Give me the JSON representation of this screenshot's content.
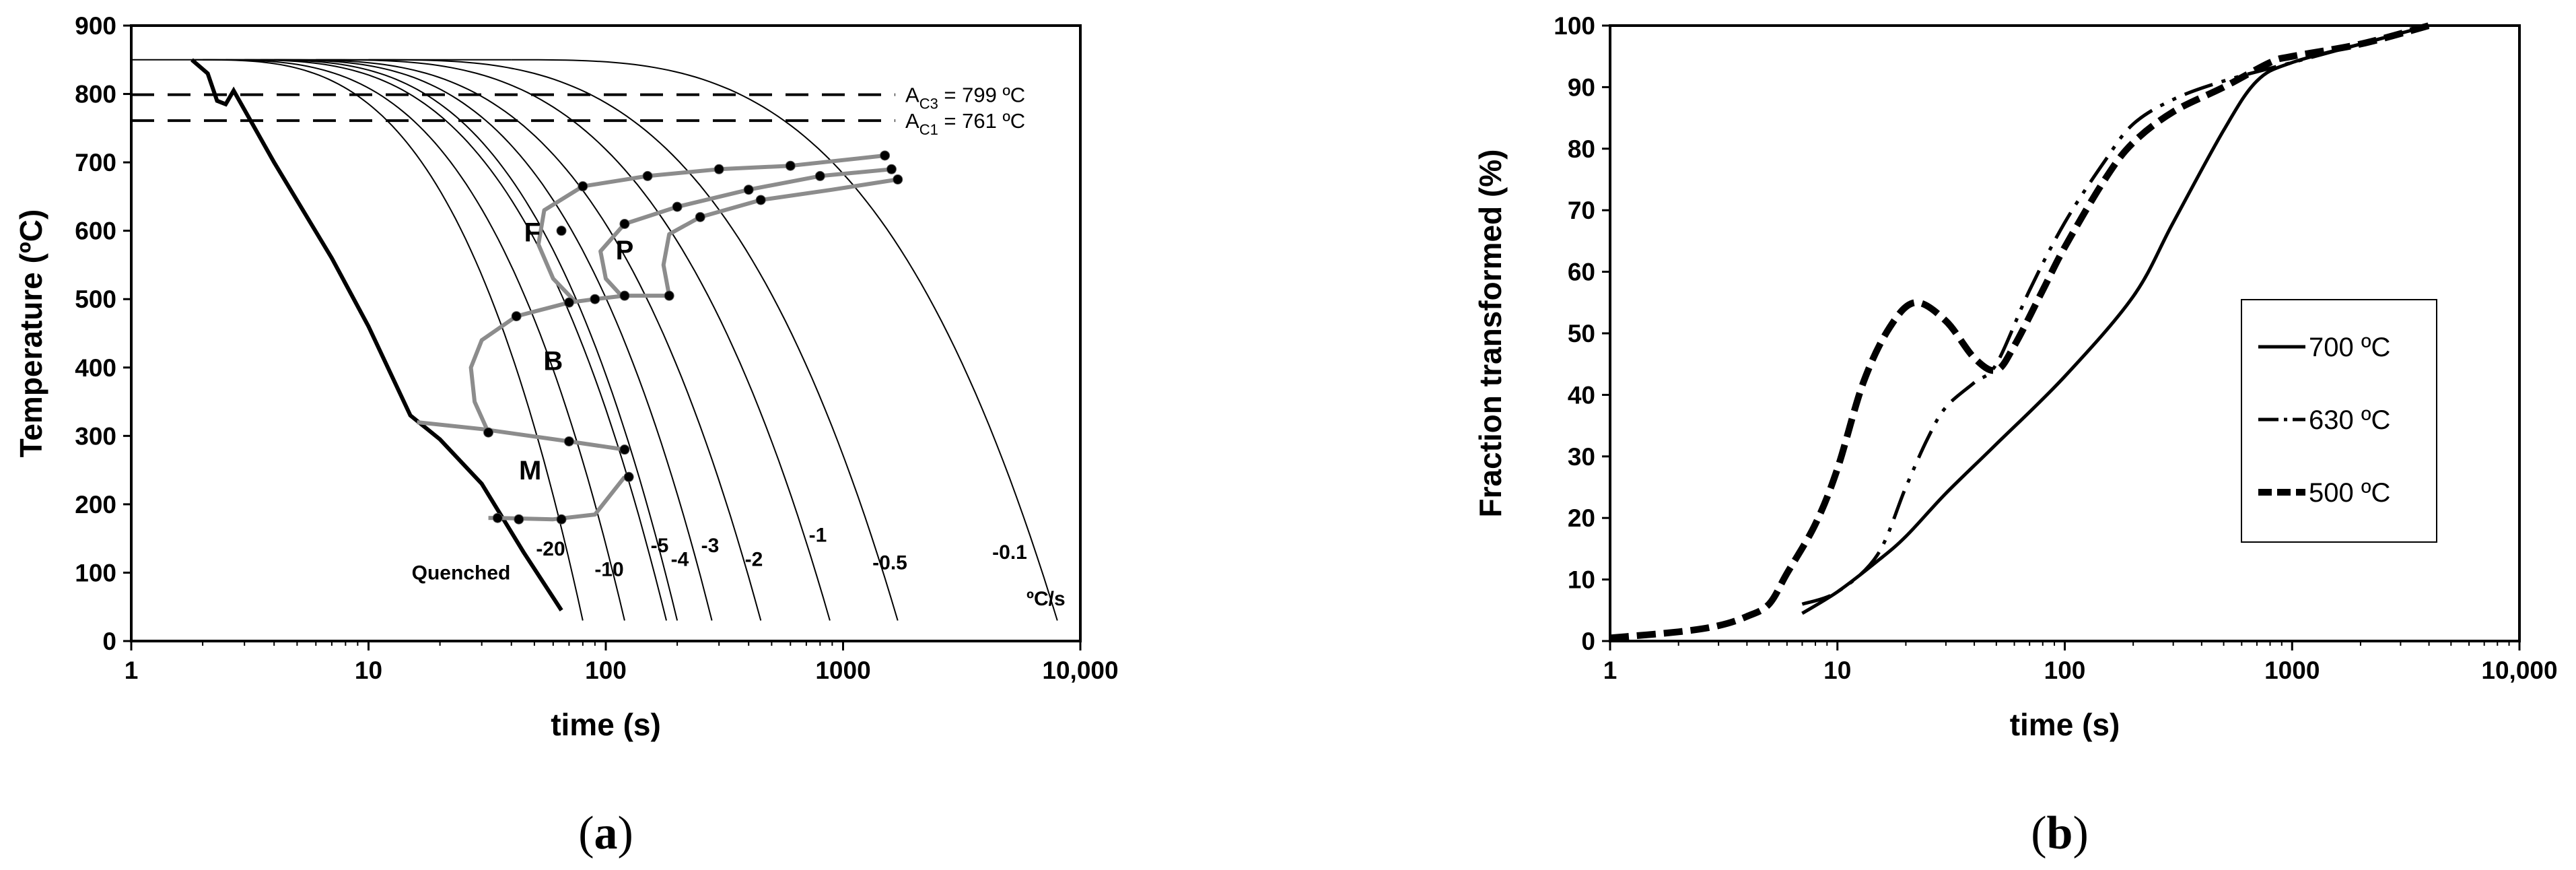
{
  "chart_data": [
    {
      "type": "line",
      "panel_label": "a",
      "xlabel": "time (s)",
      "ylabel": "Temperature (ºC)",
      "xscale": "log",
      "xlim": [
        1,
        10000
      ],
      "ylim": [
        0,
        900
      ],
      "xticks": [
        1,
        10,
        100,
        1000,
        10000
      ],
      "xtick_labels": [
        "1",
        "10",
        "100",
        "1000",
        "10,000"
      ],
      "yticks": [
        0,
        100,
        200,
        300,
        400,
        500,
        600,
        700,
        800,
        900
      ],
      "ytick_labels": [
        "0",
        "100",
        "200",
        "300",
        "400",
        "500",
        "600",
        "700",
        "800",
        "900"
      ],
      "grid": false,
      "reference_lines": [
        {
          "label_main": "A",
          "label_sub": "C3",
          "label_rest": " = 799 ºC",
          "y": 799
        },
        {
          "label_main": "A",
          "label_sub": "C1",
          "label_rest": " = 761 ºC",
          "y": 761
        }
      ],
      "cooling_curves": [
        {
          "label": "Quenched",
          "rate": null,
          "t0": 1.8,
          "t_end": 65
        },
        {
          "label": "-20",
          "rate": -20,
          "t0": 1.8,
          "t_end": 80
        },
        {
          "label": "-10",
          "rate": -10,
          "t0": 2,
          "t_end": 120
        },
        {
          "label": "-5",
          "rate": -5,
          "t0": 2.5,
          "t_end": 180
        },
        {
          "label": "-4",
          "rate": -4,
          "t0": 3,
          "t_end": 200
        },
        {
          "label": "-3",
          "rate": -3,
          "t0": 3.5,
          "t_end": 280
        },
        {
          "label": "-2",
          "rate": -2,
          "t0": 4,
          "t_end": 450
        },
        {
          "label": "-1",
          "rate": -1,
          "t0": 6,
          "t_end": 880
        },
        {
          "label": "-0.5",
          "rate": -0.5,
          "t0": 10,
          "t_end": 1700
        },
        {
          "label": "-0.1",
          "rate": -0.1,
          "t0": 40,
          "t_end": 8000
        }
      ],
      "unit_label": "ºC/s",
      "regions": [
        "F",
        "P",
        "B",
        "M"
      ],
      "transformation_boundaries": {
        "ferrite_start": [
          [
            1500,
            710
          ],
          [
            600,
            695
          ],
          [
            300,
            690
          ],
          [
            150,
            680
          ],
          [
            80,
            665
          ],
          [
            55,
            630
          ],
          [
            52,
            580
          ],
          [
            60,
            530
          ],
          [
            75,
            495
          ]
        ],
        "ferrite_finish_pearlite_start": [
          [
            1600,
            690
          ],
          [
            800,
            680
          ],
          [
            400,
            660
          ],
          [
            200,
            635
          ],
          [
            120,
            610
          ],
          [
            95,
            570
          ],
          [
            100,
            530
          ],
          [
            120,
            500
          ]
        ],
        "pearlite_finish": [
          [
            1700,
            675
          ],
          [
            900,
            660
          ],
          [
            450,
            645
          ],
          [
            250,
            620
          ],
          [
            185,
            595
          ],
          [
            175,
            550
          ],
          [
            185,
            505
          ]
        ],
        "bainite_start": [
          [
            185,
            505
          ],
          [
            120,
            505
          ],
          [
            90,
            500
          ],
          [
            70,
            495
          ],
          [
            42,
            475
          ],
          [
            30,
            440
          ],
          [
            27,
            400
          ],
          [
            28,
            350
          ],
          [
            32,
            305
          ]
        ],
        "martensite_start": [
          [
            16,
            320
          ],
          [
            30,
            310
          ],
          [
            70,
            292
          ],
          [
            120,
            280
          ]
        ],
        "martensite_finish": [
          [
            35,
            180
          ],
          [
            60,
            178
          ],
          [
            90,
            185
          ],
          [
            120,
            240
          ]
        ]
      },
      "transformation_points": [
        [
          1500,
          710
        ],
        [
          1600,
          690
        ],
        [
          1700,
          675
        ],
        [
          800,
          680
        ],
        [
          600,
          695
        ],
        [
          400,
          660
        ],
        [
          300,
          690
        ],
        [
          250,
          620
        ],
        [
          150,
          680
        ],
        [
          200,
          635
        ],
        [
          450,
          645
        ],
        [
          80,
          665
        ],
        [
          120,
          610
        ],
        [
          65,
          600
        ],
        [
          185,
          505
        ],
        [
          120,
          505
        ],
        [
          90,
          500
        ],
        [
          70,
          495
        ],
        [
          42,
          475
        ],
        [
          32,
          305
        ],
        [
          70,
          292
        ],
        [
          120,
          280
        ],
        [
          125,
          240
        ],
        [
          65,
          178
        ],
        [
          43,
          178
        ],
        [
          35,
          180
        ]
      ]
    },
    {
      "type": "line",
      "panel_label": "b",
      "xlabel": "time (s)",
      "ylabel": "Fraction transformed (%)",
      "xscale": "log",
      "xlim": [
        1,
        10000
      ],
      "ylim": [
        0,
        100
      ],
      "xticks": [
        1,
        10,
        100,
        1000,
        10000
      ],
      "xtick_labels": [
        "1",
        "10",
        "100",
        "1000",
        "10,000"
      ],
      "yticks": [
        0,
        10,
        20,
        30,
        40,
        50,
        60,
        70,
        80,
        90,
        100
      ],
      "ytick_labels": [
        "0",
        "10",
        "20",
        "30",
        "40",
        "50",
        "60",
        "70",
        "80",
        "90",
        "100"
      ],
      "grid": false,
      "legend": "right",
      "series": [
        {
          "name": "700 ºC",
          "style": "solid",
          "points": [
            [
              7,
              4.5
            ],
            [
              10,
              8
            ],
            [
              15,
              13
            ],
            [
              20,
              17
            ],
            [
              30,
              24
            ],
            [
              50,
              32
            ],
            [
              100,
              43
            ],
            [
              200,
              56
            ],
            [
              300,
              68
            ],
            [
              500,
              83
            ],
            [
              700,
              91
            ],
            [
              1000,
              94
            ],
            [
              2000,
              97
            ],
            [
              4000,
              100
            ]
          ]
        },
        {
          "name": "630 ºC",
          "style": "dash-dot",
          "points": [
            [
              7,
              6
            ],
            [
              10,
              8
            ],
            [
              15,
              14
            ],
            [
              20,
              25
            ],
            [
              25,
              33
            ],
            [
              30,
              38
            ],
            [
              40,
              42
            ],
            [
              50,
              45
            ],
            [
              70,
              57
            ],
            [
              100,
              68
            ],
            [
              150,
              78
            ],
            [
              200,
              84
            ],
            [
              300,
              88
            ],
            [
              500,
              91
            ],
            [
              1000,
              94
            ],
            [
              2000,
              97
            ],
            [
              4000,
              100
            ]
          ]
        },
        {
          "name": "500 ºC",
          "style": "dashed",
          "points": [
            [
              1,
              0.5
            ],
            [
              2,
              1.5
            ],
            [
              3,
              2.5
            ],
            [
              4,
              4
            ],
            [
              5,
              6
            ],
            [
              6,
              11
            ],
            [
              8,
              19
            ],
            [
              10,
              28
            ],
            [
              13,
              42
            ],
            [
              17,
              51
            ],
            [
              22,
              55
            ],
            [
              30,
              52
            ],
            [
              40,
              46
            ],
            [
              50,
              44
            ],
            [
              60,
              48
            ],
            [
              80,
              57
            ],
            [
              100,
              64
            ],
            [
              150,
              75
            ],
            [
              200,
              81
            ],
            [
              300,
              86
            ],
            [
              500,
              90
            ],
            [
              800,
              94
            ],
            [
              1000,
              95
            ],
            [
              2000,
              97
            ],
            [
              4000,
              100
            ]
          ]
        }
      ]
    }
  ]
}
